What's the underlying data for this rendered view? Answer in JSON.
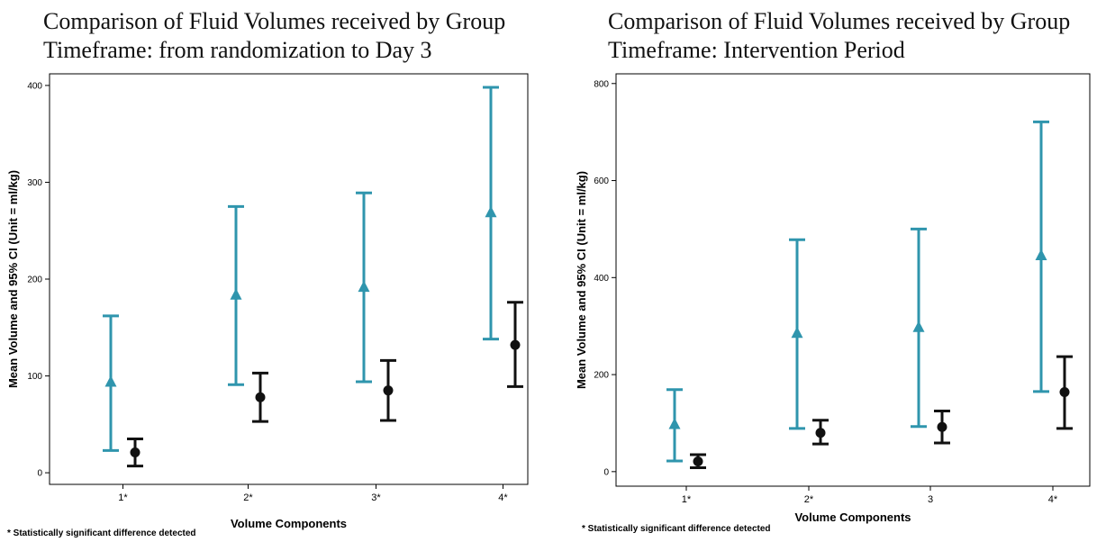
{
  "charts": [
    {
      "title_line1": "Comparison of Fluid Volumes received by Group",
      "title_line2": "Timeframe: from randomization to Day 3",
      "footnote": "* Statistically significant difference detected"
    },
    {
      "title_line1": "Comparison of Fluid Volumes received by Group",
      "title_line2": "Timeframe: Intervention Period",
      "footnote": "* Statistically significant difference detected"
    }
  ],
  "chart_data": [
    {
      "type": "errorbar",
      "xlabel": "Volume Components",
      "ylabel": "Mean Volume and 95% CI (Unit = ml/kg)",
      "categories": [
        "1*",
        "2*",
        "3*",
        "4*"
      ],
      "yticks": [
        0,
        100,
        200,
        300,
        400
      ],
      "ylim": [
        -12,
        412
      ],
      "grid": false,
      "series": [
        {
          "color": "#2f95ad",
          "marker": "triangle",
          "mean": [
            94,
            184,
            192,
            269
          ],
          "lower": [
            23,
            91,
            94,
            138
          ],
          "upper": [
            162,
            275,
            289,
            398
          ]
        },
        {
          "color": "#111111",
          "marker": "circle",
          "mean": [
            21,
            78,
            85,
            132
          ],
          "lower": [
            7,
            53,
            54,
            89
          ],
          "upper": [
            35,
            103,
            116,
            176
          ]
        }
      ]
    },
    {
      "type": "errorbar",
      "xlabel": "Volume Components",
      "ylabel": "Mean Volume and 95% CI (Unit = ml/kg)",
      "categories": [
        "1*",
        "2*",
        "3",
        "4*"
      ],
      "yticks": [
        0,
        200,
        400,
        600,
        800
      ],
      "ylim": [
        -30,
        820
      ],
      "grid": false,
      "series": [
        {
          "color": "#2f95ad",
          "marker": "triangle",
          "mean": [
            98,
            286,
            298,
            446
          ],
          "lower": [
            22,
            89,
            93,
            165
          ],
          "upper": [
            169,
            478,
            500,
            721
          ]
        },
        {
          "color": "#111111",
          "marker": "circle",
          "mean": [
            21,
            80,
            92,
            164
          ],
          "lower": [
            8,
            57,
            59,
            89
          ],
          "upper": [
            35,
            106,
            125,
            237
          ]
        }
      ]
    }
  ]
}
